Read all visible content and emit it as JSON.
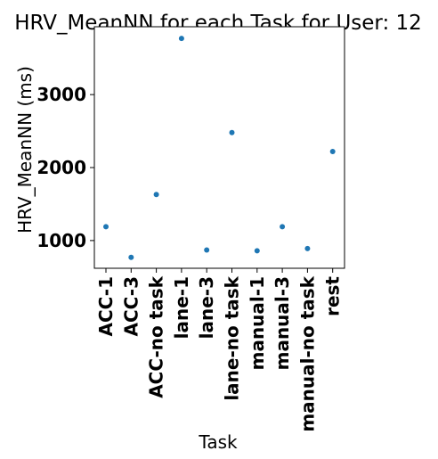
{
  "chart_data": {
    "type": "scatter",
    "title": "HRV_MeanNN for each Task for User: 12",
    "xlabel": "Task",
    "ylabel": "HRV_MeanNN (ms)",
    "categories": [
      "ACC-1",
      "ACC-3",
      "ACC-no task",
      "lane-1",
      "lane-3",
      "lane-no task",
      "manual-1",
      "manual-3",
      "manual-no task",
      "rest"
    ],
    "values": [
      1190,
      770,
      1630,
      3770,
      870,
      2480,
      860,
      1190,
      890,
      2220
    ],
    "yticks": [
      1000,
      2000,
      3000
    ],
    "ylim": [
      620,
      3930
    ],
    "grid": false,
    "legend": "none",
    "marker_color": "#1f77b4"
  }
}
